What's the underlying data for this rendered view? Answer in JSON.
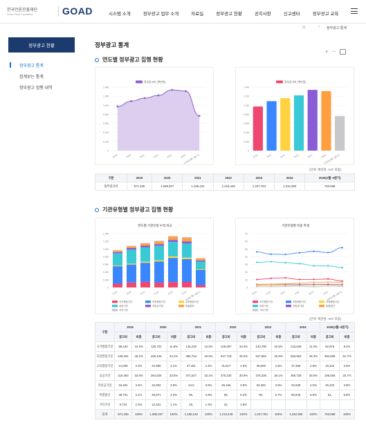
{
  "header": {
    "org_name": "한국언론진흥재단",
    "org_sub": "Korea Press Foundation",
    "brand": "GOAD",
    "nav": [
      "시스템 소개",
      "정부광고 업무 소개",
      "자료실",
      "정부광고 현황",
      "공지사항",
      "신고센터",
      "정부광고 교육"
    ]
  },
  "breadcrumb": {
    "current": "정부광고 통계",
    "home_icon": "home-icon"
  },
  "sidebar": {
    "title": "정부광고 현황",
    "items": [
      "정부광고 통계",
      "집계보는 통계",
      "정부광고 집행 내역"
    ]
  },
  "page_title": "정부광고 통계",
  "section1": {
    "title": "연도별 정부광고 집행 현황",
    "unit": "(단위: 백만원, VAT 포함)",
    "table": {
      "headers": [
        "구분",
        "2019",
        "2020",
        "2021",
        "2022",
        "2023",
        "2024",
        "2025(1월~3분기)"
      ],
      "row_label": "정부광고비",
      "values": [
        "971,195",
        "1,089,337",
        "1,156,132",
        "1,216,449",
        "1,337,783",
        "1,310,390",
        "763,698"
      ]
    }
  },
  "section2": {
    "title": "기관유형별 정부광고 집행 현황",
    "unit": "(단위: 백만원, VAT 포함)",
    "table": {
      "group_label": "구분",
      "years": [
        "2019",
        "2020",
        "2021",
        "2022",
        "2023",
        "2024",
        "2025(1월~3분기)"
      ],
      "sub_headers": [
        "광고비",
        "비중"
      ],
      "rows": [
        {
          "label": "국가행정기관",
          "cells": [
            "99,433",
            "10.2%",
            "128,722",
            "11.8%",
            "145,230",
            "12.5%",
            "125,087",
            "10.3%",
            "140,790",
            "10.5%",
            "143,649",
            "11.0%",
            "62,876",
            "8.2%"
          ]
        },
        {
          "label": "지방행정기관",
          "cells": [
            "448,331",
            "46.2%",
            "465,126",
            "43.1%",
            "496,754",
            "42.9%",
            "547,719",
            "45.0%",
            "627,862",
            "46.9%",
            "593,552",
            "45.3%",
            "394,895",
            "51.7%"
          ]
        },
        {
          "label": "교육행정기관",
          "cells": [
            "21,058",
            "2.2%",
            "22,680",
            "2.1%",
            "27,451",
            "2.4%",
            "31,817",
            "2.6%",
            "39,009",
            "2.9%",
            "37,369",
            "2.9%",
            "19,104",
            "2.5%"
          ]
        },
        {
          "label": "공공기관",
          "cells": [
            "316,450",
            "32.6%",
            "364,625",
            "33.5%",
            "371,547",
            "32.1%",
            "376,230",
            "30.9%",
            "375,336",
            "28.1%",
            "366,728",
            "28.0%",
            "196,065",
            "25.7%"
          ]
        },
        {
          "label": "지방공기업",
          "cells": [
            "34,491",
            "3.6%",
            "42,053",
            "3.9%",
            "44,0",
            "3.8%",
            "46,166",
            "3.8%",
            "52,382",
            "3.9%",
            "52,539",
            "4.0%",
            "29,102",
            "3.8%"
          ]
        },
        {
          "label": "특별법인",
          "cells": [
            "39,701",
            "4.1%",
            "45,971",
            "4.2%",
            "55,",
            "4.8%",
            "66,",
            "5.4%",
            "90,",
            "6.7%",
            "90,645",
            "6.9%",
            "51,",
            "6.8%"
          ]
        },
        {
          "label": "기타기관",
          "cells": [
            "9,723",
            "1.0%",
            "12,161",
            "1.1%",
            "15,",
            "1.3%",
            "22,",
            "1.8%",
            "",
            "",
            "",
            "",
            "",
            ""
          ]
        },
        {
          "label": "합계",
          "cells": [
            "971,195",
            "100%",
            "1,089,337",
            "100%",
            "1,156,132",
            "100%",
            "1,216,449",
            "100%",
            "1,337,783",
            "100%",
            "1,310,390",
            "100%",
            "763,698",
            "100%"
          ]
        }
      ]
    }
  },
  "colors": {
    "navy": "#1b3b6f",
    "accent": "#1b6fc8",
    "area_fill": "#d8c9ec",
    "area_line": "#8e62c6"
  },
  "chart_data": [
    {
      "type": "area",
      "legend": [
        "정부광고비 (백만원)"
      ],
      "legend_position": "top-center",
      "categories": [
        "2019",
        "2020",
        "2021",
        "2022",
        "2023",
        "2024",
        "2025(1월~3분기)"
      ],
      "series": [
        {
          "name": "정부광고비 (백만원)",
          "values": [
            971195,
            1089337,
            1156132,
            1216449,
            1337783,
            1310390,
            763698
          ]
        }
      ],
      "y_ticks": [
        "0",
        "0.2M",
        "0.4M",
        "0.6M",
        "0.8M",
        "1.0M",
        "1.2M",
        "1.4M"
      ],
      "ylim": [
        0,
        1400000
      ],
      "grid": true
    },
    {
      "type": "bar",
      "legend": [
        "정부광고비 (백만원)"
      ],
      "legend_position": "top-center",
      "categories": [
        "2019",
        "2020",
        "2021",
        "2022",
        "2023",
        "2024",
        "2025(1월~3분기)"
      ],
      "values": [
        971195,
        1089337,
        1156132,
        1216449,
        1337783,
        1310390,
        763698
      ],
      "bar_colors": [
        "#ef476f",
        "#3a86ff",
        "#ffd23f",
        "#3ac9d6",
        "#8a5cd6",
        "#ff9f40",
        "#c8c8cc"
      ],
      "y_ticks": [
        "0",
        "0.2M",
        "0.4M",
        "0.6M",
        "0.8M",
        "1.0M",
        "1.2M",
        "1.4M"
      ],
      "ylim": [
        0,
        1400000
      ],
      "grid": true
    },
    {
      "type": "bar",
      "title": "연도별 기관유형 누적 비교",
      "stacked": true,
      "categories": [
        "2019",
        "2020",
        "2021",
        "2022",
        "2023",
        "2024",
        "2025(1월~3분기)"
      ],
      "series": [
        {
          "name": "국가행정기관",
          "color": "#ef476f",
          "values": [
            99433,
            128722,
            145230,
            125087,
            140790,
            143649,
            62876
          ]
        },
        {
          "name": "지방행정기관",
          "color": "#3a86ff",
          "values": [
            448331,
            465126,
            496754,
            547719,
            627862,
            593552,
            394895
          ]
        },
        {
          "name": "교육행정기관",
          "color": "#ffd23f",
          "values": [
            21058,
            22680,
            27451,
            31817,
            39009,
            37369,
            19104
          ]
        },
        {
          "name": "공공기관",
          "color": "#3ac9d6",
          "values": [
            316450,
            364625,
            371547,
            376230,
            375336,
            366728,
            196065
          ]
        },
        {
          "name": "지방공기업",
          "color": "#8a5cd6",
          "values": [
            34491,
            42053,
            44000,
            46166,
            52382,
            52539,
            29102
          ]
        },
        {
          "name": "특별법인",
          "color": "#ff9f40",
          "values": [
            39701,
            45971,
            55000,
            66000,
            90000,
            90645,
            51000
          ]
        },
        {
          "name": "기타기관",
          "color": "#c8c8cc",
          "values": [
            9723,
            12161,
            15000,
            22000,
            12604,
            25908,
            10656
          ]
        }
      ],
      "y_ticks": [
        "0",
        "0.2M",
        "0.4M",
        "0.6M",
        "0.8M",
        "1.0M",
        "1.2M",
        "1.4M"
      ],
      "ylim": [
        0,
        1400000
      ],
      "legend_position": "bottom",
      "grid": true
    },
    {
      "type": "line",
      "title": "기관유형별 비중 추세",
      "categories": [
        "2019",
        "2020",
        "2021",
        "2022",
        "2023",
        "2024",
        "2025(1월~3분기)"
      ],
      "series": [
        {
          "name": "국가행정기관",
          "color": "#ef476f",
          "values": [
            10.2,
            11.8,
            12.5,
            10.3,
            10.5,
            11.0,
            8.2
          ]
        },
        {
          "name": "지방행정기관",
          "color": "#3a86ff",
          "values": [
            46.2,
            43.1,
            42.9,
            45.0,
            46.9,
            45.3,
            51.7
          ]
        },
        {
          "name": "교육행정기관",
          "color": "#ffd23f",
          "values": [
            2.2,
            2.1,
            2.4,
            2.6,
            2.9,
            2.9,
            2.5
          ]
        },
        {
          "name": "공공기관",
          "color": "#3ac9d6",
          "values": [
            32.6,
            33.5,
            32.1,
            30.9,
            28.1,
            28.0,
            25.7
          ]
        },
        {
          "name": "지방공기업",
          "color": "#8a5cd6",
          "values": [
            3.6,
            3.9,
            3.8,
            3.8,
            3.9,
            4.0,
            3.8
          ]
        },
        {
          "name": "특별법인",
          "color": "#ff9f40",
          "values": [
            4.1,
            4.2,
            4.8,
            5.4,
            6.7,
            6.9,
            6.8
          ]
        },
        {
          "name": "기타기관",
          "color": "#c8c8cc",
          "values": [
            1.0,
            1.1,
            1.3,
            1.8,
            0.9,
            2.0,
            1.3
          ]
        }
      ],
      "y_ticks": [
        "0",
        "10",
        "20",
        "30",
        "40",
        "50",
        "60",
        "70"
      ],
      "ylim": [
        0,
        70
      ],
      "legend_position": "bottom",
      "grid": true
    }
  ]
}
